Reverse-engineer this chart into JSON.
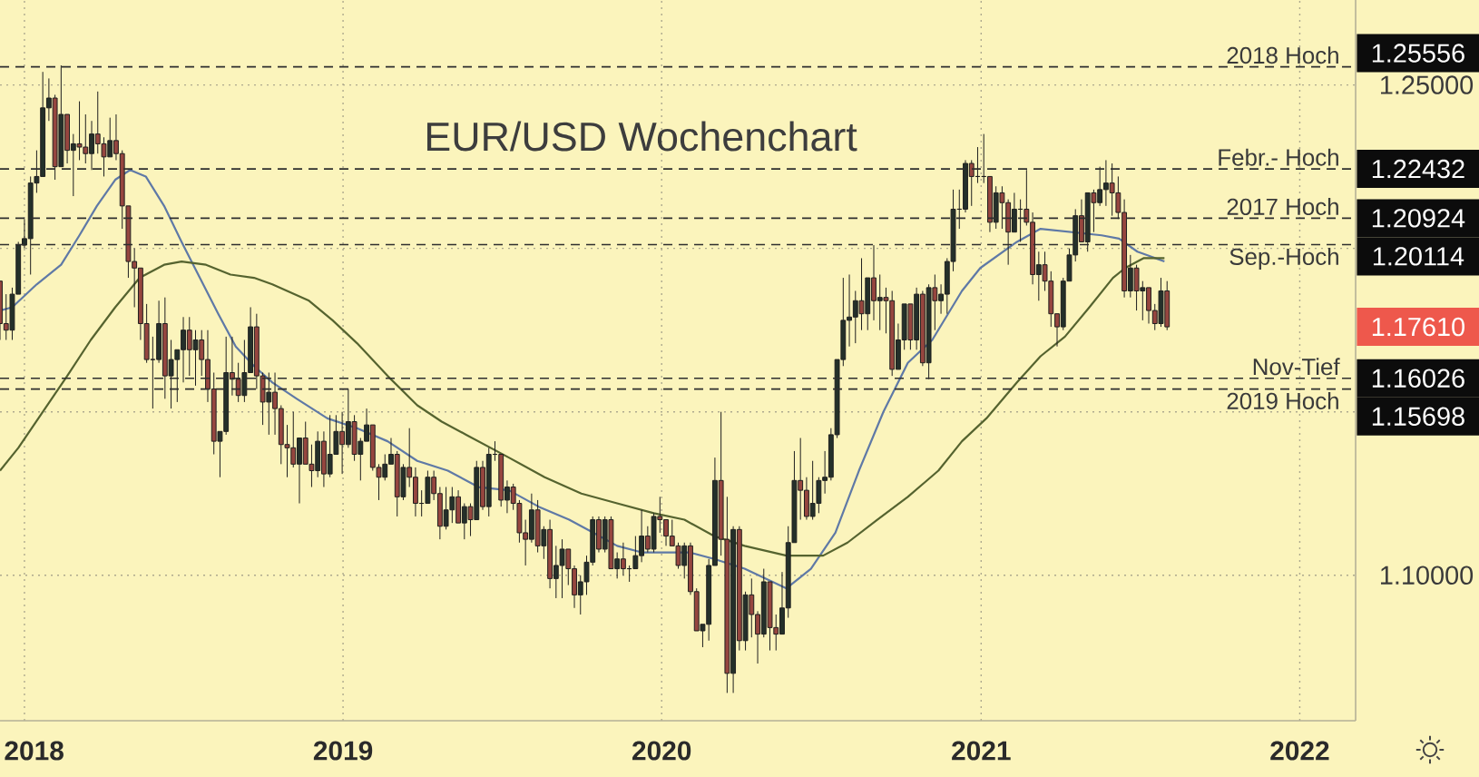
{
  "chart_data": {
    "type": "candlestick",
    "title": "EUR/USD Wochenchart",
    "x": [
      "2017-12-04",
      "2017-12-11",
      "2017-12-18",
      "2017-12-25",
      "2018-01-01",
      "2018-01-08",
      "2018-01-15",
      "2018-01-22",
      "2018-01-29",
      "2018-02-05",
      "2018-02-12",
      "2018-02-19",
      "2018-02-26",
      "2018-03-05",
      "2018-03-12",
      "2018-03-19",
      "2018-03-26",
      "2018-04-02",
      "2018-04-09",
      "2018-04-16",
      "2018-04-23",
      "2018-04-30",
      "2018-05-07",
      "2018-05-14",
      "2018-05-21",
      "2018-05-28",
      "2018-06-04",
      "2018-06-11",
      "2018-06-18",
      "2018-06-25",
      "2018-07-02",
      "2018-07-09",
      "2018-07-16",
      "2018-07-23",
      "2018-07-30",
      "2018-08-06",
      "2018-08-13",
      "2018-08-20",
      "2018-08-27",
      "2018-09-03",
      "2018-09-10",
      "2018-09-17",
      "2018-09-24",
      "2018-10-01",
      "2018-10-08",
      "2018-10-15",
      "2018-10-22",
      "2018-10-29",
      "2018-11-05",
      "2018-11-12",
      "2018-11-19",
      "2018-11-26",
      "2018-12-03",
      "2018-12-10",
      "2018-12-17",
      "2018-12-24",
      "2018-12-31",
      "2019-01-07",
      "2019-01-14",
      "2019-01-21",
      "2019-01-28",
      "2019-02-04",
      "2019-02-11",
      "2019-02-18",
      "2019-02-25",
      "2019-03-04",
      "2019-03-11",
      "2019-03-18",
      "2019-03-25",
      "2019-04-01",
      "2019-04-08",
      "2019-04-15",
      "2019-04-22",
      "2019-04-29",
      "2019-05-06",
      "2019-05-13",
      "2019-05-20",
      "2019-05-27",
      "2019-06-03",
      "2019-06-10",
      "2019-06-17",
      "2019-06-24",
      "2019-07-01",
      "2019-07-08",
      "2019-07-15",
      "2019-07-22",
      "2019-07-29",
      "2019-08-05",
      "2019-08-12",
      "2019-08-19",
      "2019-08-26",
      "2019-09-02",
      "2019-09-09",
      "2019-09-16",
      "2019-09-23",
      "2019-09-30",
      "2019-10-07",
      "2019-10-14",
      "2019-10-21",
      "2019-10-28",
      "2019-11-04",
      "2019-11-11",
      "2019-11-18",
      "2019-11-25",
      "2019-12-02",
      "2019-12-09",
      "2019-12-16",
      "2019-12-23",
      "2019-12-30",
      "2020-01-06",
      "2020-01-13",
      "2020-01-20",
      "2020-01-27",
      "2020-02-03",
      "2020-02-10",
      "2020-02-17",
      "2020-02-24",
      "2020-03-02",
      "2020-03-09",
      "2020-03-16",
      "2020-03-23",
      "2020-03-30",
      "2020-04-06",
      "2020-04-13",
      "2020-04-20",
      "2020-04-27",
      "2020-05-04",
      "2020-05-11",
      "2020-05-18",
      "2020-05-25",
      "2020-06-01",
      "2020-06-08",
      "2020-06-15",
      "2020-06-22",
      "2020-06-29",
      "2020-07-06",
      "2020-07-13",
      "2020-07-20",
      "2020-07-27",
      "2020-08-03",
      "2020-08-10",
      "2020-08-17",
      "2020-08-24",
      "2020-08-31",
      "2020-09-07",
      "2020-09-14",
      "2020-09-21",
      "2020-09-28",
      "2020-10-05",
      "2020-10-12",
      "2020-10-19",
      "2020-10-26",
      "2020-11-02",
      "2020-11-09",
      "2020-11-16",
      "2020-11-23",
      "2020-11-30",
      "2020-12-07",
      "2020-12-14",
      "2020-12-21",
      "2020-12-28",
      "2021-01-04",
      "2021-01-11",
      "2021-01-18",
      "2021-01-25",
      "2021-02-01",
      "2021-02-08",
      "2021-02-15",
      "2021-02-22",
      "2021-03-01",
      "2021-03-08",
      "2021-03-15",
      "2021-03-22",
      "2021-03-29",
      "2021-04-05",
      "2021-04-12",
      "2021-04-19",
      "2021-04-26",
      "2021-05-03",
      "2021-05-10",
      "2021-05-17",
      "2021-05-24",
      "2021-05-31",
      "2021-06-07",
      "2021-06-14",
      "2021-06-21",
      "2021-06-28",
      "2021-07-05",
      "2021-07-12",
      "2021-07-19",
      "2021-07-26",
      "2021-08-02"
    ],
    "ohlc": [
      [
        1.19,
        1.19,
        1.172,
        1.177
      ],
      [
        1.177,
        1.186,
        1.172,
        1.175
      ],
      [
        1.175,
        1.188,
        1.172,
        1.186
      ],
      [
        1.186,
        1.202,
        1.186,
        1.201
      ],
      [
        1.201,
        1.209,
        1.2,
        1.203
      ],
      [
        1.203,
        1.222,
        1.192,
        1.22
      ],
      [
        1.22,
        1.23,
        1.217,
        1.222
      ],
      [
        1.222,
        1.254,
        1.222,
        1.243
      ],
      [
        1.243,
        1.252,
        1.239,
        1.246
      ],
      [
        1.246,
        1.247,
        1.221,
        1.225
      ],
      [
        1.225,
        1.256,
        1.225,
        1.241
      ],
      [
        1.241,
        1.241,
        1.226,
        1.23
      ],
      [
        1.23,
        1.235,
        1.216,
        1.232
      ],
      [
        1.232,
        1.245,
        1.227,
        1.231
      ],
      [
        1.231,
        1.241,
        1.226,
        1.229
      ],
      [
        1.229,
        1.239,
        1.224,
        1.235
      ],
      [
        1.235,
        1.248,
        1.229,
        1.232
      ],
      [
        1.232,
        1.234,
        1.222,
        1.228
      ],
      [
        1.228,
        1.24,
        1.228,
        1.233
      ],
      [
        1.233,
        1.241,
        1.227,
        1.229
      ],
      [
        1.229,
        1.23,
        1.206,
        1.213
      ],
      [
        1.213,
        1.213,
        1.191,
        1.196
      ],
      [
        1.196,
        1.2,
        1.182,
        1.194
      ],
      [
        1.194,
        1.194,
        1.172,
        1.177
      ],
      [
        1.177,
        1.183,
        1.165,
        1.166
      ],
      [
        1.166,
        1.173,
        1.151,
        1.166
      ],
      [
        1.166,
        1.184,
        1.165,
        1.177
      ],
      [
        1.177,
        1.185,
        1.154,
        1.161
      ],
      [
        1.161,
        1.172,
        1.151,
        1.166
      ],
      [
        1.166,
        1.169,
        1.153,
        1.169
      ],
      [
        1.169,
        1.179,
        1.159,
        1.175
      ],
      [
        1.175,
        1.179,
        1.161,
        1.169
      ],
      [
        1.169,
        1.175,
        1.158,
        1.172
      ],
      [
        1.172,
        1.175,
        1.161,
        1.166
      ],
      [
        1.166,
        1.175,
        1.153,
        1.157
      ],
      [
        1.157,
        1.162,
        1.137,
        1.141
      ],
      [
        1.141,
        1.144,
        1.13,
        1.144
      ],
      [
        1.144,
        1.173,
        1.143,
        1.162
      ],
      [
        1.162,
        1.173,
        1.155,
        1.16
      ],
      [
        1.16,
        1.165,
        1.153,
        1.155
      ],
      [
        1.155,
        1.172,
        1.153,
        1.162
      ],
      [
        1.162,
        1.182,
        1.162,
        1.176
      ],
      [
        1.176,
        1.18,
        1.157,
        1.161
      ],
      [
        1.161,
        1.162,
        1.146,
        1.153
      ],
      [
        1.153,
        1.162,
        1.143,
        1.156
      ],
      [
        1.156,
        1.162,
        1.143,
        1.151
      ],
      [
        1.151,
        1.152,
        1.134,
        1.14
      ],
      [
        1.14,
        1.146,
        1.13,
        1.139
      ],
      [
        1.139,
        1.15,
        1.133,
        1.134
      ],
      [
        1.134,
        1.142,
        1.122,
        1.142
      ],
      [
        1.142,
        1.147,
        1.134,
        1.134
      ],
      [
        1.134,
        1.14,
        1.127,
        1.132
      ],
      [
        1.132,
        1.144,
        1.13,
        1.141
      ],
      [
        1.141,
        1.144,
        1.127,
        1.131
      ],
      [
        1.131,
        1.149,
        1.13,
        1.137
      ],
      [
        1.137,
        1.149,
        1.137,
        1.144
      ],
      [
        1.144,
        1.15,
        1.131,
        1.14
      ],
      [
        1.14,
        1.157,
        1.139,
        1.147
      ],
      [
        1.147,
        1.149,
        1.135,
        1.137
      ],
      [
        1.137,
        1.142,
        1.129,
        1.141
      ],
      [
        1.141,
        1.151,
        1.141,
        1.146
      ],
      [
        1.146,
        1.146,
        1.132,
        1.133
      ],
      [
        1.133,
        1.134,
        1.123,
        1.13
      ],
      [
        1.13,
        1.137,
        1.129,
        1.134
      ],
      [
        1.134,
        1.142,
        1.134,
        1.137
      ],
      [
        1.137,
        1.138,
        1.118,
        1.124
      ],
      [
        1.124,
        1.134,
        1.123,
        1.133
      ],
      [
        1.133,
        1.145,
        1.127,
        1.13
      ],
      [
        1.13,
        1.133,
        1.118,
        1.122
      ],
      [
        1.122,
        1.126,
        1.118,
        1.122
      ],
      [
        1.122,
        1.132,
        1.122,
        1.13
      ],
      [
        1.13,
        1.132,
        1.123,
        1.125
      ],
      [
        1.125,
        1.127,
        1.111,
        1.115
      ],
      [
        1.115,
        1.127,
        1.114,
        1.12
      ],
      [
        1.12,
        1.127,
        1.116,
        1.124
      ],
      [
        1.124,
        1.126,
        1.116,
        1.116
      ],
      [
        1.116,
        1.122,
        1.111,
        1.121
      ],
      [
        1.121,
        1.122,
        1.112,
        1.117
      ],
      [
        1.117,
        1.135,
        1.117,
        1.133
      ],
      [
        1.133,
        1.135,
        1.12,
        1.121
      ],
      [
        1.121,
        1.139,
        1.118,
        1.137
      ],
      [
        1.137,
        1.141,
        1.135,
        1.137
      ],
      [
        1.137,
        1.137,
        1.121,
        1.123
      ],
      [
        1.123,
        1.129,
        1.119,
        1.127
      ],
      [
        1.127,
        1.128,
        1.12,
        1.122
      ],
      [
        1.122,
        1.123,
        1.11,
        1.113
      ],
      [
        1.113,
        1.117,
        1.103,
        1.111
      ],
      [
        1.111,
        1.125,
        1.11,
        1.12
      ],
      [
        1.12,
        1.123,
        1.107,
        1.109
      ],
      [
        1.109,
        1.115,
        1.105,
        1.114
      ],
      [
        1.114,
        1.117,
        1.096,
        1.099
      ],
      [
        1.099,
        1.109,
        1.093,
        1.103
      ],
      [
        1.103,
        1.111,
        1.093,
        1.108
      ],
      [
        1.108,
        1.108,
        1.097,
        1.102
      ],
      [
        1.102,
        1.103,
        1.09,
        1.094
      ],
      [
        1.094,
        1.1,
        1.088,
        1.098
      ],
      [
        1.098,
        1.106,
        1.094,
        1.104
      ],
      [
        1.104,
        1.118,
        1.103,
        1.117
      ],
      [
        1.117,
        1.118,
        1.107,
        1.108
      ],
      [
        1.108,
        1.118,
        1.107,
        1.117
      ],
      [
        1.117,
        1.118,
        1.102,
        1.102
      ],
      [
        1.102,
        1.107,
        1.099,
        1.105
      ],
      [
        1.105,
        1.11,
        1.1,
        1.102
      ],
      [
        1.102,
        1.103,
        1.098,
        1.102
      ],
      [
        1.102,
        1.112,
        1.102,
        1.106
      ],
      [
        1.106,
        1.12,
        1.104,
        1.112
      ],
      [
        1.112,
        1.115,
        1.107,
        1.108
      ],
      [
        1.108,
        1.119,
        1.107,
        1.118
      ],
      [
        1.118,
        1.124,
        1.113,
        1.117
      ],
      [
        1.117,
        1.117,
        1.109,
        1.112
      ],
      [
        1.112,
        1.117,
        1.109,
        1.109
      ],
      [
        1.109,
        1.11,
        1.102,
        1.103
      ],
      [
        1.103,
        1.11,
        1.099,
        1.109
      ],
      [
        1.109,
        1.11,
        1.094,
        1.095
      ],
      [
        1.095,
        1.096,
        1.083,
        1.083
      ],
      [
        1.083,
        1.085,
        1.078,
        1.085
      ],
      [
        1.085,
        1.105,
        1.08,
        1.103
      ],
      [
        1.103,
        1.136,
        1.103,
        1.129
      ],
      [
        1.129,
        1.15,
        1.106,
        1.111
      ],
      [
        1.111,
        1.124,
        1.064,
        1.07
      ],
      [
        1.07,
        1.115,
        1.064,
        1.114
      ],
      [
        1.114,
        1.115,
        1.077,
        1.08
      ],
      [
        1.08,
        1.095,
        1.077,
        1.094
      ],
      [
        1.094,
        1.099,
        1.081,
        1.088
      ],
      [
        1.088,
        1.089,
        1.073,
        1.082
      ],
      [
        1.082,
        1.102,
        1.081,
        1.098
      ],
      [
        1.098,
        1.098,
        1.077,
        1.084
      ],
      [
        1.084,
        1.088,
        1.077,
        1.082
      ],
      [
        1.082,
        1.101,
        1.082,
        1.09
      ],
      [
        1.09,
        1.115,
        1.087,
        1.11
      ],
      [
        1.11,
        1.138,
        1.11,
        1.129
      ],
      [
        1.129,
        1.142,
        1.117,
        1.126
      ],
      [
        1.126,
        1.13,
        1.117,
        1.118
      ],
      [
        1.118,
        1.135,
        1.117,
        1.122
      ],
      [
        1.122,
        1.13,
        1.119,
        1.129
      ],
      [
        1.129,
        1.138,
        1.125,
        1.13
      ],
      [
        1.13,
        1.145,
        1.129,
        1.143
      ],
      [
        1.143,
        1.166,
        1.142,
        1.166
      ],
      [
        1.166,
        1.191,
        1.164,
        1.178
      ],
      [
        1.178,
        1.192,
        1.17,
        1.179
      ],
      [
        1.179,
        1.187,
        1.171,
        1.184
      ],
      [
        1.184,
        1.197,
        1.175,
        1.18
      ],
      [
        1.18,
        1.191,
        1.175,
        1.191
      ],
      [
        1.191,
        1.201,
        1.178,
        1.184
      ],
      [
        1.184,
        1.192,
        1.175,
        1.185
      ],
      [
        1.185,
        1.188,
        1.174,
        1.184
      ],
      [
        1.184,
        1.187,
        1.161,
        1.163
      ],
      [
        1.163,
        1.177,
        1.163,
        1.172
      ],
      [
        1.172,
        1.183,
        1.169,
        1.183
      ],
      [
        1.183,
        1.183,
        1.169,
        1.172
      ],
      [
        1.172,
        1.188,
        1.169,
        1.186
      ],
      [
        1.186,
        1.187,
        1.164,
        1.165
      ],
      [
        1.165,
        1.189,
        1.16,
        1.188
      ],
      [
        1.188,
        1.192,
        1.175,
        1.184
      ],
      [
        1.184,
        1.189,
        1.18,
        1.186
      ],
      [
        1.186,
        1.197,
        1.18,
        1.196
      ],
      [
        1.196,
        1.218,
        1.193,
        1.212
      ],
      [
        1.212,
        1.218,
        1.206,
        1.212
      ],
      [
        1.212,
        1.227,
        1.211,
        1.226
      ],
      [
        1.226,
        1.227,
        1.213,
        1.222
      ],
      [
        1.222,
        1.231,
        1.22,
        1.222
      ],
      [
        1.222,
        1.235,
        1.22,
        1.222
      ],
      [
        1.222,
        1.222,
        1.205,
        1.208
      ],
      [
        1.208,
        1.219,
        1.206,
        1.217
      ],
      [
        1.217,
        1.219,
        1.206,
        1.214
      ],
      [
        1.214,
        1.215,
        1.195,
        1.205
      ],
      [
        1.205,
        1.217,
        1.205,
        1.212
      ],
      [
        1.212,
        1.215,
        1.202,
        1.212
      ],
      [
        1.212,
        1.224,
        1.207,
        1.208
      ],
      [
        1.208,
        1.211,
        1.189,
        1.192
      ],
      [
        1.192,
        1.199,
        1.184,
        1.195
      ],
      [
        1.195,
        1.199,
        1.187,
        1.19
      ],
      [
        1.19,
        1.193,
        1.176,
        1.18
      ],
      [
        1.18,
        1.18,
        1.17,
        1.176
      ],
      [
        1.176,
        1.191,
        1.175,
        1.19
      ],
      [
        1.19,
        1.2,
        1.19,
        1.198
      ],
      [
        1.198,
        1.212,
        1.196,
        1.21
      ],
      [
        1.21,
        1.215,
        1.202,
        1.202
      ],
      [
        1.202,
        1.217,
        1.199,
        1.217
      ],
      [
        1.217,
        1.218,
        1.205,
        1.214
      ],
      [
        1.214,
        1.225,
        1.213,
        1.218
      ],
      [
        1.218,
        1.227,
        1.213,
        1.22
      ],
      [
        1.22,
        1.226,
        1.21,
        1.217
      ],
      [
        1.217,
        1.222,
        1.209,
        1.211
      ],
      [
        1.211,
        1.215,
        1.185,
        1.187
      ],
      [
        1.187,
        1.198,
        1.185,
        1.194
      ],
      [
        1.194,
        1.195,
        1.181,
        1.187
      ],
      [
        1.187,
        1.19,
        1.178,
        1.188
      ],
      [
        1.188,
        1.188,
        1.177,
        1.181
      ],
      [
        1.181,
        1.183,
        1.175,
        1.177
      ],
      [
        1.177,
        1.191,
        1.176,
        1.187
      ],
      [
        1.187,
        1.19,
        1.175,
        1.176
      ]
    ],
    "series": [
      {
        "type": "line",
        "color": "#5f79a6",
        "x": [
          "2017-12-04",
          "2017-12-18",
          "2018-01-15",
          "2018-02-12",
          "2018-03-05",
          "2018-03-25",
          "2018-04-15",
          "2018-05-02",
          "2018-05-20",
          "2018-06-10",
          "2018-06-30",
          "2018-07-21",
          "2018-08-11",
          "2018-08-31",
          "2018-09-21",
          "2018-10-12",
          "2018-11-09",
          "2018-12-14",
          "2019-01-17",
          "2019-02-21",
          "2019-03-27",
          "2019-05-01",
          "2019-06-05",
          "2019-07-10",
          "2019-08-13",
          "2019-09-17",
          "2019-10-15",
          "2019-11-11",
          "2019-12-09",
          "2020-01-06",
          "2020-02-02",
          "2020-03-01",
          "2020-04-05",
          "2020-05-23",
          "2020-06-20",
          "2020-07-18",
          "2020-08-14",
          "2020-09-11",
          "2020-10-09",
          "2020-11-06",
          "2020-12-10",
          "2020-12-31",
          "2021-02-11",
          "2021-03-10",
          "2021-04-14",
          "2021-05-19",
          "2021-06-08",
          "2021-06-29",
          "2021-07-30"
        ],
        "values": [
          1.181,
          1.182,
          1.189,
          1.195,
          1.204,
          1.213,
          1.221,
          1.224,
          1.222,
          1.213,
          1.202,
          1.191,
          1.18,
          1.17,
          1.164,
          1.159,
          1.154,
          1.148,
          1.145,
          1.141,
          1.135,
          1.132,
          1.127,
          1.126,
          1.121,
          1.117,
          1.113,
          1.109,
          1.107,
          1.107,
          1.107,
          1.105,
          1.102,
          1.096,
          1.102,
          1.113,
          1.132,
          1.15,
          1.165,
          1.172,
          1.187,
          1.194,
          1.202,
          1.206,
          1.205,
          1.204,
          1.203,
          1.199,
          1.196
        ]
      },
      {
        "type": "line",
        "color": "#55632f",
        "x": [
          "2017-12-04",
          "2017-12-25",
          "2018-01-22",
          "2018-02-19",
          "2018-03-18",
          "2018-04-15",
          "2018-05-13",
          "2018-06-10",
          "2018-06-30",
          "2018-07-28",
          "2018-08-25",
          "2018-09-21",
          "2018-10-12",
          "2018-11-23",
          "2018-12-20",
          "2019-01-17",
          "2019-02-21",
          "2019-03-27",
          "2019-04-24",
          "2019-05-22",
          "2019-06-19",
          "2019-07-10",
          "2019-08-20",
          "2019-10-01",
          "2019-11-11",
          "2019-12-23",
          "2020-01-27",
          "2020-03-01",
          "2020-04-05",
          "2020-05-23",
          "2020-07-04",
          "2020-08-01",
          "2020-09-04",
          "2020-10-09",
          "2020-11-13",
          "2020-12-10",
          "2021-01-07",
          "2021-02-11",
          "2021-03-10",
          "2021-04-07",
          "2021-05-05",
          "2021-06-01",
          "2021-06-15",
          "2021-07-06",
          "2021-07-30"
        ],
        "values": [
          1.132,
          1.139,
          1.15,
          1.161,
          1.172,
          1.182,
          1.191,
          1.195,
          1.196,
          1.195,
          1.192,
          1.191,
          1.189,
          1.184,
          1.178,
          1.171,
          1.161,
          1.152,
          1.147,
          1.143,
          1.139,
          1.136,
          1.13,
          1.125,
          1.122,
          1.119,
          1.117,
          1.112,
          1.109,
          1.106,
          1.106,
          1.11,
          1.117,
          1.124,
          1.132,
          1.141,
          1.148,
          1.159,
          1.167,
          1.173,
          1.182,
          1.191,
          1.194,
          1.197,
          1.197
        ]
      }
    ],
    "xlim": [
      "2017-12-04",
      "2022-03-06"
    ],
    "xticks": [
      "2018",
      "2019",
      "2020",
      "2021",
      "2022"
    ],
    "ylim": [
      1.0555,
      1.276
    ],
    "yticks": [
      {
        "value": 1.1,
        "label": "1.10000"
      },
      {
        "value": 1.15,
        "label": null
      },
      {
        "value": 1.2,
        "label": null
      },
      {
        "value": 1.25,
        "label": "1.25000"
      }
    ],
    "grid": true,
    "ref_lines": [
      {
        "axis": "y",
        "value": 1.25556,
        "label": "2018 Hoch",
        "color": "#2e2e2e",
        "line_style": "dashed"
      },
      {
        "axis": "y",
        "value": 1.22432,
        "label": "Febr.- Hoch",
        "color": "#2e2e2e",
        "line_style": "dashed"
      },
      {
        "axis": "y",
        "value": 1.20924,
        "label": "2017 Hoch",
        "color": "#2e2e2e",
        "line_style": "dashed"
      },
      {
        "axis": "y",
        "value": 1.20114,
        "label": "Sep.-Hoch",
        "color": "#2e2e2e",
        "line_style": "dashed"
      },
      {
        "axis": "y",
        "value": 1.16026,
        "label": "Nov-Tief",
        "color": "#2e2e2e",
        "line_style": "dashed"
      },
      {
        "axis": "y",
        "value": 1.15698,
        "label": "2019 Hoch",
        "color": "#2e2e2e",
        "line_style": "dashed"
      }
    ],
    "annotations": [
      "1.25556",
      "1.22432",
      "1.20924",
      "1.20114",
      "1.16026",
      "1.15698",
      "1.17610"
    ]
  }
}
